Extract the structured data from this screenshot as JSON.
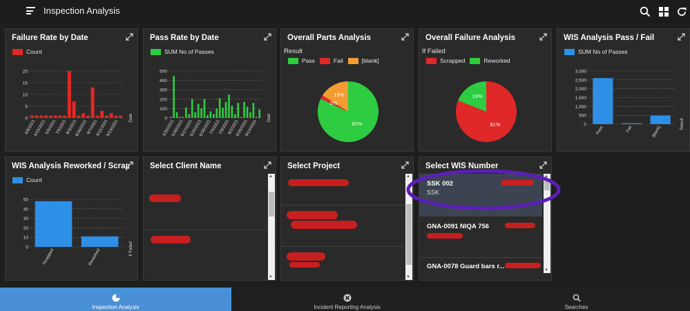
{
  "app": {
    "title": "Inspection Analysis"
  },
  "colors": {
    "red": "#e02828",
    "green": "#2ecc40",
    "orange": "#f39c32",
    "blue": "#2d8fe6",
    "active_tab": "#4a90d9",
    "annotation_circle": "#5b1fb5"
  },
  "cards": {
    "failure_rate": {
      "title": "Failure Rate by Date",
      "legend": "Count",
      "xlabel": "Date"
    },
    "pass_rate": {
      "title": "Pass Rate by Date",
      "legend": "SUM No of Passes",
      "xlabel": "Date"
    },
    "parts": {
      "title": "Overall Parts Analysis",
      "legend_title": "Result",
      "legend": [
        "Pass",
        "Fail",
        "[blank]"
      ]
    },
    "failure": {
      "title": "Overall Failure Analysis",
      "legend_title": "If Failed",
      "legend": [
        "Scrapped",
        "Reworked"
      ]
    },
    "wis_pf": {
      "title": "WIS Analysis Pass / Fail",
      "legend": "SUM No of Passes",
      "xlabel": "Result"
    },
    "wis_rs": {
      "title": "WIS Analysis Reworked / Scrapp...",
      "legend": "Count",
      "xlabel": "If Failed"
    },
    "client": {
      "title": "Select Client Name"
    },
    "project": {
      "title": "Select Project"
    },
    "wis_number": {
      "title": "Select WIS Number",
      "items": [
        {
          "title": "SSK 002",
          "sub": "SSK"
        },
        {
          "title": "GNA-0091 NIQA 756",
          "sub": ""
        },
        {
          "title": "GNA-0078 Guard bars r...",
          "sub": ""
        }
      ]
    }
  },
  "chart_data": [
    {
      "type": "bar",
      "title": "Failure Rate by Date",
      "xlabel": "Date",
      "ylim": [
        0,
        20
      ],
      "yticks": [
        0,
        5,
        10,
        15,
        20
      ],
      "tick_labels": [
        "4/8/2021",
        "4/15/2021",
        "5/9/2021",
        "7/5/2021",
        "8/3/2021",
        "8/30/2021",
        "9/7/2021",
        "9/11/2021",
        "9/13/2021"
      ],
      "values": [
        1,
        1,
        1,
        1,
        1,
        1,
        1,
        1,
        20,
        7,
        1,
        2,
        1,
        13,
        1,
        3,
        1,
        2,
        1,
        1
      ]
    },
    {
      "type": "bar",
      "title": "Pass Rate by Date",
      "xlabel": "Date",
      "ylim": [
        0,
        500
      ],
      "yticks": [
        0,
        100,
        200,
        300,
        400,
        500
      ],
      "tick_labels": [
        "3/30/2021",
        "5/30/2021",
        "6/17/2021",
        "6/25/2021",
        "6/30/2021",
        "7/5/2021",
        "7/9/2021",
        "8/2/2021",
        "8/26/2021",
        "9/14/2021"
      ],
      "values": [
        10,
        450,
        60,
        10,
        10,
        110,
        40,
        200,
        60,
        150,
        100,
        200,
        30,
        70,
        40,
        100,
        210,
        110,
        170,
        250,
        130,
        40,
        160,
        10,
        170,
        120,
        60,
        160,
        10,
        90
      ]
    },
    {
      "type": "pie",
      "title": "Overall Parts Analysis",
      "labels": [
        "Pass",
        "Fail",
        "[blank]"
      ],
      "values": [
        82,
        2,
        16
      ],
      "data_labels": [
        "82%",
        "2%",
        "16%"
      ]
    },
    {
      "type": "pie",
      "title": "Overall Failure Analysis",
      "labels": [
        "Scrapped",
        "Reworked"
      ],
      "values": [
        81,
        19
      ],
      "data_labels": [
        "81%",
        "19%"
      ]
    },
    {
      "type": "bar",
      "title": "WIS Analysis Pass / Fail",
      "xlabel": "Result",
      "ylim": [
        0,
        3000
      ],
      "yticks": [
        "0",
        "500",
        "1,000",
        "1,500",
        "2,000",
        "2,500",
        "3,000"
      ],
      "categories": [
        "Pass",
        "Fail",
        "[blank]"
      ],
      "values": [
        2600,
        50,
        480
      ]
    },
    {
      "type": "bar",
      "title": "WIS Analysis Reworked / Scrapp...",
      "xlabel": "If Failed",
      "ylim": [
        0,
        50
      ],
      "yticks": [
        0,
        10,
        20,
        30,
        40,
        50
      ],
      "categories": [
        "Scrapped",
        "Reworked"
      ],
      "values": [
        48,
        11
      ]
    }
  ],
  "nav": [
    {
      "label": "Inspection Analysis",
      "icon": "pie-chart-icon",
      "active": true
    },
    {
      "label": "Incident Reporting Analysis",
      "icon": "cancel-circle-icon",
      "active": false
    },
    {
      "label": "Searches",
      "icon": "search-icon",
      "active": false
    }
  ]
}
